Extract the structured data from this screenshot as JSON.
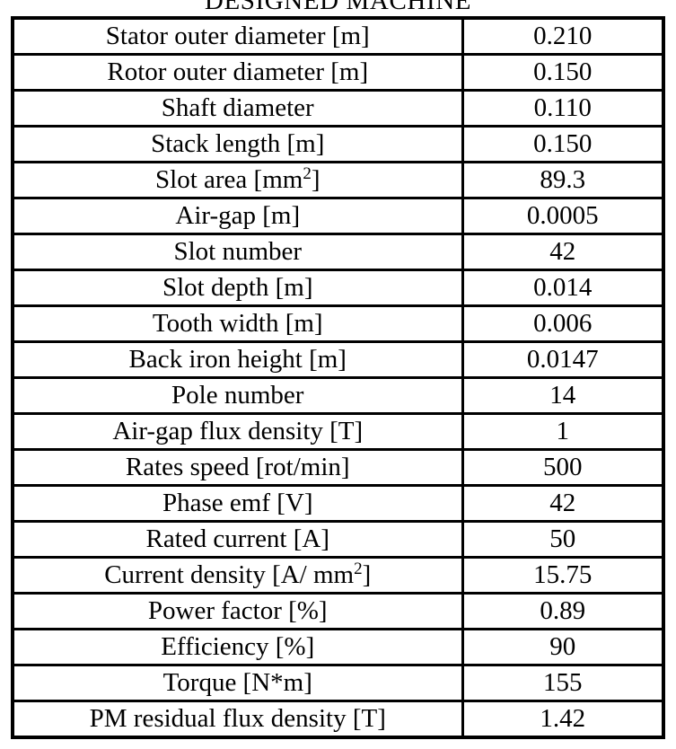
{
  "title": "DESIGNED MACHINE",
  "table": {
    "rows": [
      {
        "label": "Stator outer diameter [m]",
        "value": "0.210"
      },
      {
        "label": "Rotor outer diameter [m]",
        "value": "0.150"
      },
      {
        "label": "Shaft diameter",
        "value": "0.110"
      },
      {
        "label": "Stack length [m]",
        "value": "0.150"
      },
      {
        "label": "Slot area [mm",
        "sup": "2",
        "label_end": "]",
        "value": "89.3"
      },
      {
        "label": "Air-gap [m]",
        "value": "0.0005"
      },
      {
        "label": "Slot number",
        "value": "42"
      },
      {
        "label": "Slot depth [m]",
        "value": "0.014"
      },
      {
        "label": "Tooth width [m]",
        "value": "0.006"
      },
      {
        "label": "Back iron height [m]",
        "value": "0.0147"
      },
      {
        "label": "Pole number",
        "value": "14"
      },
      {
        "label": "Air-gap flux density [T]",
        "value": "1"
      },
      {
        "label": "Rates speed [rot/min]",
        "value": "500"
      },
      {
        "label": "Phase emf [V]",
        "value": "42"
      },
      {
        "label": "Rated current [A]",
        "value": "50"
      },
      {
        "label": "Current density [A/ mm",
        "sup": "2",
        "label_end": "]",
        "value": "15.75"
      },
      {
        "label": "Power factor [%]",
        "value": "0.89"
      },
      {
        "label": "Efficiency [%]",
        "value": "90"
      },
      {
        "label": "Torque [N*m]",
        "value": "155"
      },
      {
        "label": "PM residual flux density [T]",
        "value": "1.42"
      }
    ]
  }
}
